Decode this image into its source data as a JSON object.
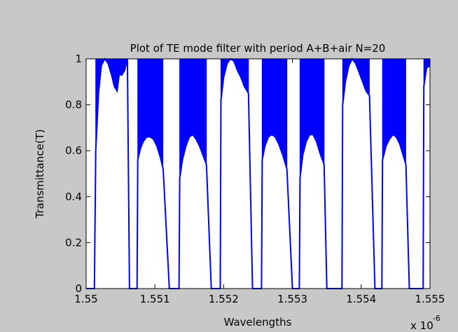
{
  "chart_data": {
    "type": "line",
    "title": "Plot of TE mode filter with period A+B+air N=20",
    "xlabel": "Wavelengths",
    "ylabel": "Transmittance(T)",
    "x_multiplier": "x 10",
    "x_multiplier_exponent": "-6",
    "xlim": [
      1.55,
      1.555
    ],
    "ylim": [
      0,
      1
    ],
    "xticks": [
      1.55,
      1.551,
      1.552,
      1.553,
      1.554,
      1.555
    ],
    "xtick_labels": [
      "1.55",
      "1.551",
      "1.552",
      "1.553",
      "1.554",
      "1.555"
    ],
    "yticks": [
      0,
      0.2,
      0.4,
      0.6,
      0.8,
      1
    ],
    "ytick_labels": [
      "0",
      "0.2",
      "0.4",
      "0.6",
      "0.8",
      "1"
    ],
    "grid": false,
    "colors": {
      "figure_bg": "#c8c8c8",
      "axes_bg": "#ffffff",
      "line": "#0000ff",
      "axis": "#000000"
    },
    "series": [
      {
        "points": [
          [
            1.55,
            0.0
          ],
          [
            1.5501,
            0.0
          ],
          [
            1.55012,
            0.0
          ],
          [
            1.55014,
            0.6
          ],
          [
            1.55018,
            0.85
          ],
          [
            1.55022,
            0.97
          ],
          [
            1.55027,
            1.0
          ],
          [
            1.55032,
            0.98
          ],
          [
            1.55037,
            0.93
          ],
          [
            1.55041,
            0.88
          ],
          [
            1.55045,
            0.86
          ],
          [
            1.55048,
            0.93
          ],
          [
            1.55052,
            0.93
          ],
          [
            1.55056,
            0.95
          ],
          [
            1.5506,
            1.0
          ],
          [
            1.55063,
            0.0
          ],
          [
            1.55066,
            0.0
          ],
          [
            1.55072,
            0.0
          ],
          [
            1.55074,
            0.0
          ],
          [
            1.55075,
            0.56
          ],
          [
            1.55079,
            0.61
          ],
          [
            1.55083,
            0.64
          ],
          [
            1.55088,
            0.66
          ],
          [
            1.55093,
            0.66
          ],
          [
            1.55098,
            0.65
          ],
          [
            1.55103,
            0.62
          ],
          [
            1.55108,
            0.57
          ],
          [
            1.55112,
            0.52
          ],
          [
            1.55121,
            0.0
          ],
          [
            1.55124,
            0.0
          ],
          [
            1.5513,
            0.0
          ],
          [
            1.55135,
            0.0
          ],
          [
            1.55136,
            0.48
          ],
          [
            1.5514,
            0.56
          ],
          [
            1.55145,
            0.62
          ],
          [
            1.5515,
            0.66
          ],
          [
            1.55155,
            0.67
          ],
          [
            1.5516,
            0.65
          ],
          [
            1.55165,
            0.62
          ],
          [
            1.5517,
            0.58
          ],
          [
            1.55175,
            0.54
          ],
          [
            1.55182,
            0.0
          ],
          [
            1.55188,
            0.0
          ],
          [
            1.55195,
            0.0
          ],
          [
            1.55196,
            0.82
          ],
          [
            1.552,
            0.92
          ],
          [
            1.55205,
            0.98
          ],
          [
            1.5521,
            1.0
          ],
          [
            1.55215,
            0.99
          ],
          [
            1.5522,
            0.95
          ],
          [
            1.55225,
            0.92
          ],
          [
            1.5523,
            0.88
          ],
          [
            1.55236,
            0.85
          ],
          [
            1.55242,
            0.0
          ],
          [
            1.5525,
            0.0
          ],
          [
            1.55255,
            0.0
          ],
          [
            1.55256,
            0.56
          ],
          [
            1.5526,
            0.62
          ],
          [
            1.55265,
            0.66
          ],
          [
            1.5527,
            0.67
          ],
          [
            1.55275,
            0.66
          ],
          [
            1.5528,
            0.63
          ],
          [
            1.55286,
            0.58
          ],
          [
            1.55292,
            0.52
          ],
          [
            1.553,
            0.0
          ],
          [
            1.5531,
            0.0
          ],
          [
            1.55311,
            0.48
          ],
          [
            1.55315,
            0.58
          ],
          [
            1.5532,
            0.64
          ],
          [
            1.55325,
            0.67
          ],
          [
            1.5533,
            0.67
          ],
          [
            1.55335,
            0.64
          ],
          [
            1.5534,
            0.59
          ],
          [
            1.55346,
            0.54
          ],
          [
            1.5535,
            0.0
          ],
          [
            1.55365,
            0.0
          ],
          [
            1.55372,
            0.0
          ],
          [
            1.55373,
            0.8
          ],
          [
            1.55377,
            0.9
          ],
          [
            1.55382,
            0.97
          ],
          [
            1.55387,
            1.0
          ],
          [
            1.55392,
            0.98
          ],
          [
            1.55397,
            0.94
          ],
          [
            1.55402,
            0.9
          ],
          [
            1.55407,
            0.86
          ],
          [
            1.55412,
            0.84
          ],
          [
            1.5542,
            0.0
          ],
          [
            1.5543,
            0.0
          ],
          [
            1.55431,
            0.56
          ],
          [
            1.55436,
            0.62
          ],
          [
            1.55441,
            0.65
          ],
          [
            1.55446,
            0.67
          ],
          [
            1.55451,
            0.66
          ],
          [
            1.55456,
            0.63
          ],
          [
            1.5546,
            0.59
          ],
          [
            1.55465,
            0.54
          ],
          [
            1.5547,
            0.0
          ],
          [
            1.5548,
            0.0
          ],
          [
            1.5549,
            0.0
          ],
          [
            1.55491,
            0.88
          ],
          [
            1.55495,
            0.96
          ],
          [
            1.555,
            0.97
          ]
        ]
      }
    ]
  }
}
